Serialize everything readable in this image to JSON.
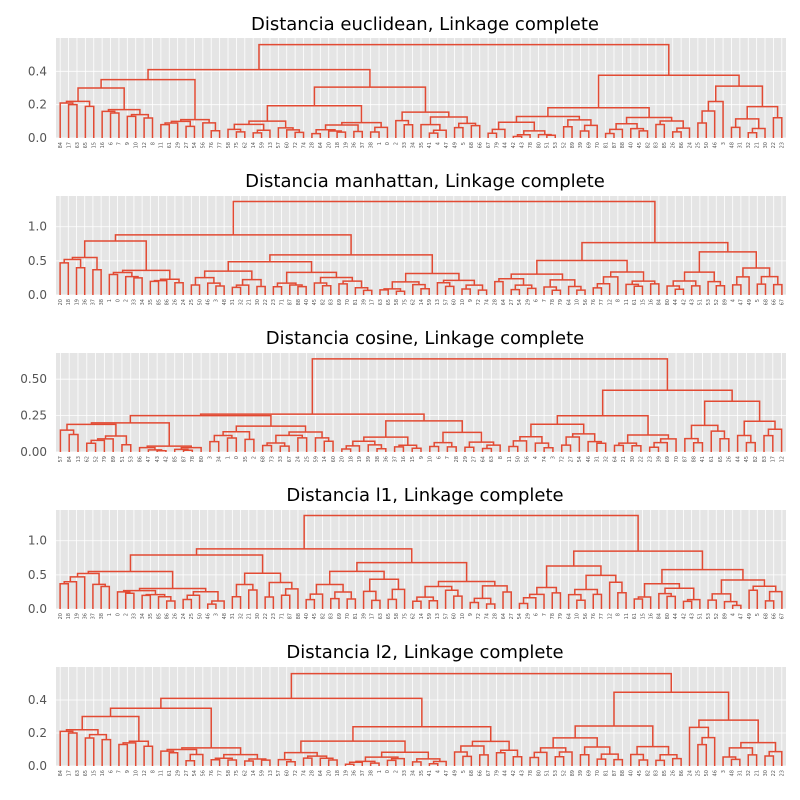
{
  "colors": {
    "link": "#e24a33",
    "background": "#e5e5e5",
    "grid": "#ffffff",
    "text": "#555555"
  },
  "chart_data": [
    {
      "type": "dendrogram",
      "title": "Distancia euclidean, Linkage complete",
      "ylim": [
        0,
        0.6
      ],
      "yticks": [
        "0.0",
        "0.2",
        "0.4"
      ],
      "leaves": [
        "84",
        "17",
        "63",
        "65",
        "15",
        "16",
        "6",
        "7",
        "9",
        "10",
        "12",
        "8",
        "11",
        "61",
        "29",
        "27",
        "54",
        "56",
        "76",
        "77",
        "58",
        "75",
        "62",
        "14",
        "59",
        "13",
        "57",
        "60",
        "72",
        "74",
        "28",
        "64",
        "20",
        "18",
        "19",
        "36",
        "37",
        "38",
        "1",
        "0",
        "2",
        "33",
        "34",
        "35",
        "41",
        "4",
        "47",
        "49",
        "5",
        "68",
        "66",
        "67",
        "79",
        "44",
        "42",
        "43",
        "78",
        "80",
        "51",
        "53",
        "52",
        "89",
        "39",
        "69",
        "70",
        "81",
        "87",
        "88",
        "40",
        "45",
        "82",
        "83",
        "85",
        "26",
        "86",
        "24",
        "25",
        "50",
        "46",
        "3",
        "48",
        "31",
        "32",
        "21",
        "30",
        "22",
        "23"
      ],
      "top_merges": [
        0.56,
        0.41,
        0.35,
        0.3,
        0.22,
        0.21,
        0.2,
        0.19,
        0.17,
        0.16,
        0.15,
        0.14,
        0.13,
        0.12,
        0.11,
        0.1,
        0.09,
        0.08,
        0.07
      ]
    },
    {
      "type": "dendrogram",
      "title": "Distancia manhattan, Linkage complete",
      "ylim": [
        0,
        1.45
      ],
      "yticks": [
        "0.0",
        "0.5",
        "1.0"
      ],
      "leaves": [
        "20",
        "18",
        "19",
        "36",
        "37",
        "38",
        "1",
        "0",
        "2",
        "33",
        "34",
        "35",
        "85",
        "86",
        "26",
        "24",
        "25",
        "50",
        "46",
        "3",
        "48",
        "31",
        "32",
        "21",
        "30",
        "22",
        "23",
        "71",
        "87",
        "88",
        "40",
        "45",
        "82",
        "83",
        "69",
        "70",
        "81",
        "39",
        "17",
        "63",
        "65",
        "58",
        "75",
        "62",
        "14",
        "59",
        "13",
        "57",
        "60",
        "10",
        "9",
        "72",
        "74",
        "28",
        "64",
        "27",
        "54",
        "29",
        "6",
        "7",
        "78",
        "79",
        "64",
        "10",
        "56",
        "76",
        "77",
        "12",
        "8",
        "11",
        "61",
        "15",
        "16",
        "84",
        "80",
        "44",
        "42",
        "43",
        "51",
        "53",
        "52",
        "89",
        "4",
        "47",
        "49",
        "5",
        "68",
        "66",
        "67"
      ],
      "top_merges": [
        1.37,
        0.88,
        0.79,
        0.55,
        0.52,
        0.47,
        0.4,
        0.37,
        0.36,
        0.33,
        0.3,
        0.27,
        0.25,
        0.23,
        0.21,
        0.2,
        0.18
      ]
    },
    {
      "type": "dendrogram",
      "title": "Distancia cosine, Linkage complete",
      "ylim": [
        0,
        0.68
      ],
      "yticks": [
        "0.00",
        "0.25",
        "0.50"
      ],
      "leaves": [
        "57",
        "84",
        "13",
        "62",
        "52",
        "79",
        "89",
        "51",
        "53",
        "86",
        "47",
        "43",
        "42",
        "85",
        "87",
        "78",
        "80",
        "3",
        "34",
        "1",
        "0",
        "35",
        "2",
        "68",
        "73",
        "33",
        "67",
        "24",
        "25",
        "59",
        "14",
        "60",
        "20",
        "18",
        "19",
        "39",
        "38",
        "36",
        "37",
        "16",
        "15",
        "9",
        "10",
        "6",
        "7",
        "28",
        "29",
        "27",
        "64",
        "63",
        "8",
        "11",
        "50",
        "56",
        "4",
        "74",
        "3",
        "72",
        "27",
        "54",
        "46",
        "31",
        "32",
        "64",
        "21",
        "30",
        "22",
        "23",
        "39",
        "69",
        "70",
        "87",
        "88",
        "41",
        "61",
        "65",
        "26",
        "44",
        "45",
        "82",
        "83",
        "17",
        "12"
      ],
      "top_merges": [
        0.64,
        0.26,
        0.25,
        0.2,
        0.19,
        0.15,
        0.12,
        0.11,
        0.09,
        0.08,
        0.06,
        0.05,
        0.04,
        0.03
      ]
    },
    {
      "type": "dendrogram",
      "title": "Distancia l1, Linkage complete",
      "ylim": [
        0,
        1.45
      ],
      "yticks": [
        "0.0",
        "0.5",
        "1.0"
      ],
      "leaves": [
        "20",
        "18",
        "19",
        "36",
        "37",
        "38",
        "1",
        "0",
        "2",
        "33",
        "34",
        "35",
        "85",
        "86",
        "26",
        "24",
        "25",
        "50",
        "46",
        "3",
        "48",
        "31",
        "32",
        "21",
        "30",
        "22",
        "23",
        "71",
        "87",
        "88",
        "40",
        "45",
        "82",
        "83",
        "69",
        "70",
        "81",
        "39",
        "17",
        "63",
        "65",
        "58",
        "75",
        "62",
        "14",
        "59",
        "13",
        "57",
        "60",
        "10",
        "9",
        "72",
        "74",
        "28",
        "64",
        "27",
        "54",
        "29",
        "6",
        "7",
        "78",
        "79",
        "64",
        "10",
        "56",
        "76",
        "77",
        "12",
        "8",
        "11",
        "61",
        "15",
        "16",
        "84",
        "80",
        "44",
        "42",
        "43",
        "51",
        "53",
        "52",
        "89",
        "4",
        "47",
        "49",
        "5",
        "68",
        "66",
        "67"
      ],
      "top_merges": [
        1.37,
        0.88,
        0.79,
        0.55,
        0.52,
        0.47,
        0.4,
        0.37,
        0.36,
        0.33,
        0.3,
        0.27,
        0.25,
        0.23,
        0.21,
        0.2,
        0.18
      ]
    },
    {
      "type": "dendrogram",
      "title": "Distancia l2, Linkage complete",
      "ylim": [
        0,
        0.6
      ],
      "yticks": [
        "0.0",
        "0.2",
        "0.4"
      ],
      "leaves": [
        "84",
        "17",
        "63",
        "65",
        "15",
        "16",
        "6",
        "7",
        "9",
        "10",
        "12",
        "8",
        "11",
        "61",
        "29",
        "27",
        "54",
        "56",
        "76",
        "77",
        "58",
        "75",
        "62",
        "14",
        "59",
        "13",
        "57",
        "60",
        "72",
        "74",
        "28",
        "64",
        "20",
        "18",
        "19",
        "36",
        "37",
        "38",
        "1",
        "0",
        "2",
        "33",
        "34",
        "35",
        "41",
        "4",
        "47",
        "49",
        "5",
        "68",
        "66",
        "67",
        "79",
        "44",
        "42",
        "43",
        "78",
        "80",
        "51",
        "53",
        "52",
        "89",
        "39",
        "69",
        "70",
        "81",
        "87",
        "88",
        "40",
        "45",
        "82",
        "83",
        "85",
        "26",
        "86",
        "24",
        "25",
        "50",
        "46",
        "3",
        "48",
        "31",
        "32",
        "21",
        "30",
        "22",
        "23"
      ],
      "top_merges": [
        0.56,
        0.41,
        0.35,
        0.3,
        0.22,
        0.21,
        0.2,
        0.19,
        0.17,
        0.16,
        0.15,
        0.14,
        0.13,
        0.12,
        0.11,
        0.1,
        0.09,
        0.08,
        0.07
      ]
    }
  ]
}
